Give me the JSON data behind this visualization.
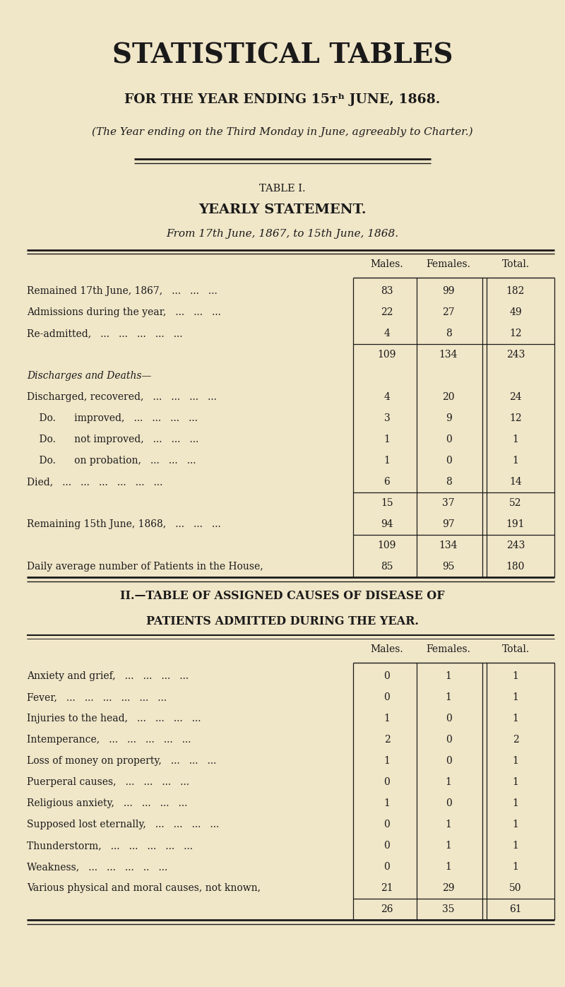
{
  "bg_color": "#f0e6c8",
  "text_color": "#1a1a1a",
  "title_main": "STATISTICAL TABLES",
  "title_sub": "FOR THE YEAR ENDING 15ᴛʰ JUNE, 1868.",
  "title_charter": "(The Year ending on the Third Monday in June, agreeably to Charter.)",
  "table1_label": "TABLE I.",
  "table1_title": "YEARLY STATEMENT.",
  "table1_subtitle": "From 17th June, 1867, to 15th June, 1868.",
  "table1_rows": [
    {
      "label": "Remained 17th June, 1867,   ...   ...   ...",
      "italic": false,
      "m": "83",
      "f": "99",
      "t": "182"
    },
    {
      "label": "Admissions during the year,   ...   ...   ...",
      "italic": false,
      "m": "22",
      "f": "27",
      "t": "49"
    },
    {
      "label": "Re-admitted,   ...   ...   ...   ...   ...",
      "italic": false,
      "m": "4",
      "f": "8",
      "t": "12"
    },
    {
      "label": "",
      "subtotal": true,
      "m": "109",
      "f": "134",
      "t": "243"
    },
    {
      "label": "Discharges and Deaths—",
      "italic": true,
      "m": "",
      "f": "",
      "t": ""
    },
    {
      "label": "Discharged, recovered,   ...   ...   ...   ...",
      "italic": false,
      "m": "4",
      "f": "20",
      "t": "24"
    },
    {
      "label": "    Do.      improved,   ...   ...   ...   ...",
      "italic": false,
      "m": "3",
      "f": "9",
      "t": "12"
    },
    {
      "label": "    Do.      not improved,   ...   ...   ...",
      "italic": false,
      "m": "1",
      "f": "0",
      "t": "1"
    },
    {
      "label": "    Do.      on probation,   ...   ...   ...",
      "italic": false,
      "m": "1",
      "f": "0",
      "t": "1"
    },
    {
      "label": "Died,   ...   ...   ...   ...   ...   ...",
      "italic": false,
      "m": "6",
      "f": "8",
      "t": "14"
    },
    {
      "label": "",
      "subtotal": true,
      "m": "15",
      "f": "37",
      "t": "52"
    },
    {
      "label": "Remaining 15th June, 1868,   ...   ...   ...",
      "italic": false,
      "m": "94",
      "f": "97",
      "t": "191"
    },
    {
      "label": "",
      "subtotal": true,
      "m": "109",
      "f": "134",
      "t": "243"
    },
    {
      "label": "Daily average number of Patients in the House,",
      "italic": false,
      "m": "85",
      "f": "95",
      "t": "180"
    }
  ],
  "table2_title1": "II.—TABLE OF ASSIGNED CAUSES OF DISEASE OF",
  "table2_title2": "PATIENTS ADMITTED DURING THE YEAR.",
  "table2_rows": [
    {
      "label": "Anxiety and grief,   ...   ...   ...   ...",
      "m": "0",
      "f": "1",
      "t": "1"
    },
    {
      "label": "Fever,   ...   ...   ...   ...   ...   ...",
      "m": "0",
      "f": "1",
      "t": "1"
    },
    {
      "label": "Injuries to the head,   ...   ...   ...   ...",
      "m": "1",
      "f": "0",
      "t": "1"
    },
    {
      "label": "Intemperance,   ...   ...   ...   ...   ...",
      "m": "2",
      "f": "0",
      "t": "2"
    },
    {
      "label": "Loss of money on property,   ...   ...   ...",
      "m": "1",
      "f": "0",
      "t": "1"
    },
    {
      "label": "Puerperal causes,   ...   ...   ...   ...",
      "m": "0",
      "f": "1",
      "t": "1"
    },
    {
      "label": "Religious anxiety,   ...   ...   ...   ...",
      "m": "1",
      "f": "0",
      "t": "1"
    },
    {
      "label": "Supposed lost eternally,   ...   ...   ...   ...",
      "m": "0",
      "f": "1",
      "t": "1"
    },
    {
      "label": "Thunderstorm,   ...   ...   ...   ...   ...",
      "m": "0",
      "f": "1",
      "t": "1"
    },
    {
      "label": "Weakness,   ...   ...   ...   ..   ...",
      "m": "0",
      "f": "1",
      "t": "1"
    },
    {
      "label": "Various physical and moral causes, not known,",
      "m": "21",
      "f": "29",
      "t": "50"
    },
    {
      "label": "",
      "subtotal": true,
      "m": "26",
      "f": "35",
      "t": "61"
    }
  ]
}
